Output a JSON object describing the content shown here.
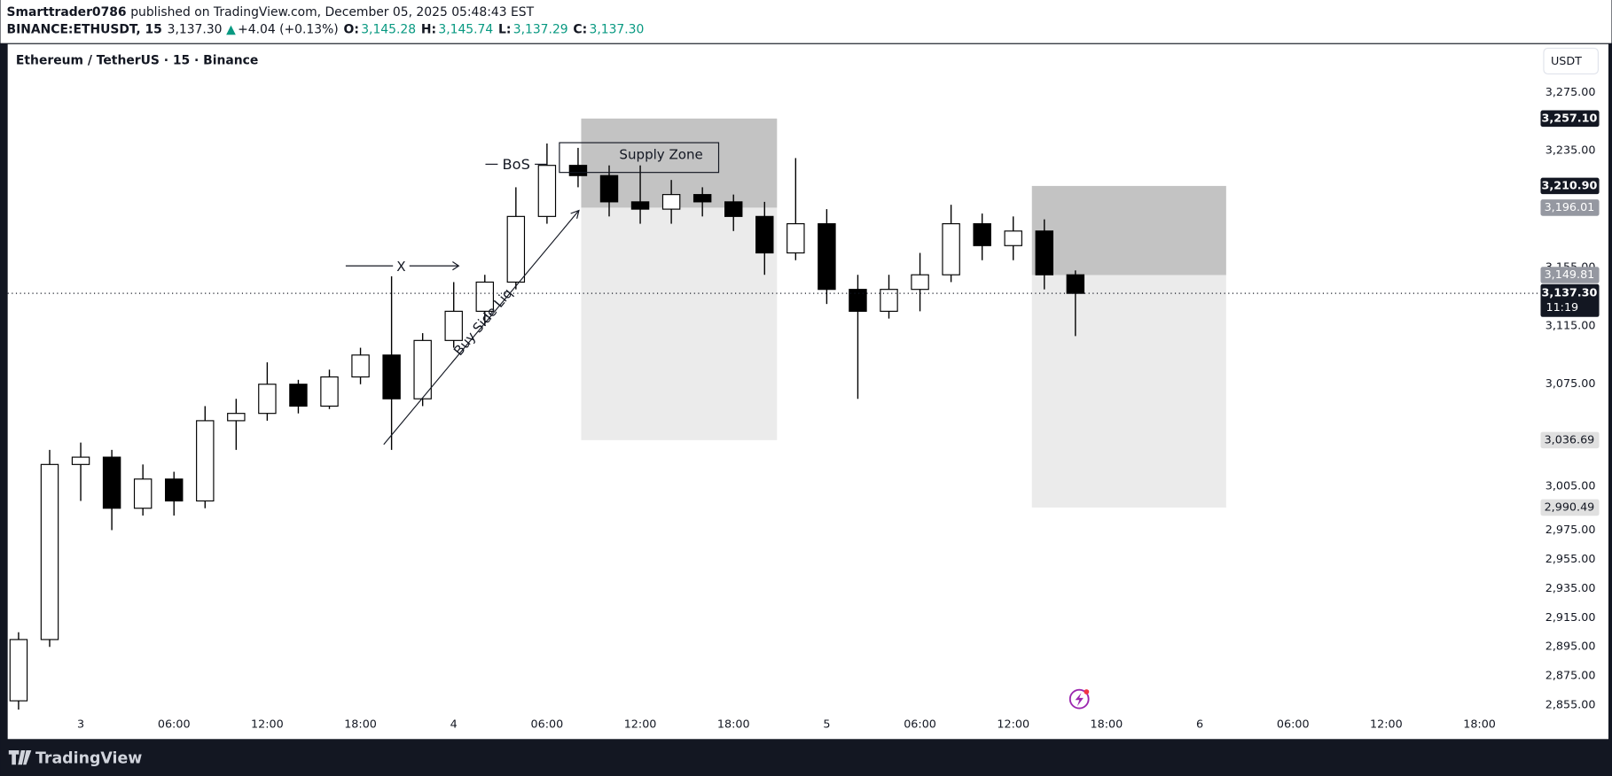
{
  "header": {
    "author": "Smarttrader0786",
    "published": "published on TradingView.com, December 05, 2025 05:48:43 EST",
    "symbol": "BINANCE:ETHUSDT, 15",
    "price": "3,137.30",
    "change": "+4.04 (+0.13%)",
    "o_label": "O:",
    "o": "3,145.28",
    "h_label": "H:",
    "h": "3,145.74",
    "l_label": "L:",
    "l": "3,137.29",
    "c_label": "C:",
    "c": "3,137.30"
  },
  "footer": {
    "brand": "TradingView"
  },
  "chart_data": {
    "type": "candlestick",
    "title": "Ethereum / TetherUS · 15 · Binance",
    "currency": "USDT",
    "up_color": "#ffffff",
    "down_color": "#000000",
    "wick_color": "#000000",
    "grid": false,
    "xlim": [
      -4.7,
      93.8
    ],
    "ylim": [
      2832.5,
      3307.4
    ],
    "xticks": [
      {
        "value": 0,
        "label": "3"
      },
      {
        "value": 6,
        "label": "06:00"
      },
      {
        "value": 12,
        "label": "12:00"
      },
      {
        "value": 18,
        "label": "18:00"
      },
      {
        "value": 24,
        "label": "4"
      },
      {
        "value": 30,
        "label": "06:00"
      },
      {
        "value": 36,
        "label": "12:00"
      },
      {
        "value": 42,
        "label": "18:00"
      },
      {
        "value": 48,
        "label": "5"
      },
      {
        "value": 54,
        "label": "06:00"
      },
      {
        "value": 60,
        "label": "12:00"
      },
      {
        "value": 66,
        "label": "18:00"
      },
      {
        "value": 72,
        "label": "6"
      },
      {
        "value": 78,
        "label": "06:00"
      },
      {
        "value": 84,
        "label": "12:00"
      },
      {
        "value": 90,
        "label": "18:00"
      }
    ],
    "yticks": [
      {
        "value": 2855,
        "label": "2,855.00"
      },
      {
        "value": 2875,
        "label": "2,875.00"
      },
      {
        "value": 2895,
        "label": "2,895.00"
      },
      {
        "value": 2915,
        "label": "2,915.00"
      },
      {
        "value": 2935,
        "label": "2,935.00"
      },
      {
        "value": 2955,
        "label": "2,955.00"
      },
      {
        "value": 2975,
        "label": "2,975.00"
      },
      {
        "value": 3005,
        "label": "3,005.00"
      },
      {
        "value": 3075,
        "label": "3,075.00"
      },
      {
        "value": 3115,
        "label": "3,115.00"
      },
      {
        "value": 3155,
        "label": "3,155.00"
      },
      {
        "value": 3235,
        "label": "3,235.00"
      },
      {
        "value": 3275,
        "label": "3,275.00"
      }
    ],
    "candles": {
      "x": [
        -4,
        -2,
        0,
        2,
        4,
        6,
        8,
        10,
        12,
        14,
        16,
        18,
        20,
        22,
        24,
        26,
        28,
        30,
        32,
        34,
        36,
        38,
        40,
        42,
        44,
        46,
        48,
        50,
        52,
        54,
        56,
        58,
        60,
        62,
        64
      ],
      "open": [
        2858,
        2900,
        3020,
        3025,
        2990,
        3010,
        2995,
        3050,
        3055,
        3075,
        3060,
        3080,
        3095,
        3065,
        3105,
        3125,
        3145,
        3190,
        3225,
        3218,
        3200,
        3195,
        3205,
        3200,
        3190,
        3165,
        3185,
        3140,
        3125,
        3140,
        3150,
        3185,
        3170,
        3180,
        3150
      ],
      "high": [
        2905,
        3030,
        3035,
        3030,
        3020,
        3015,
        3060,
        3065,
        3090,
        3078,
        3085,
        3100,
        3149,
        3110,
        3145,
        3150,
        3210,
        3240,
        3237,
        3225,
        3225,
        3215,
        3210,
        3205,
        3200,
        3230,
        3195,
        3150,
        3150,
        3165,
        3198,
        3192,
        3190,
        3188,
        3153
      ],
      "low": [
        2852,
        2895,
        2995,
        2975,
        2985,
        2985,
        2990,
        3030,
        3050,
        3055,
        3058,
        3075,
        3030,
        3060,
        3100,
        3115,
        3140,
        3185,
        3210,
        3190,
        3185,
        3185,
        3190,
        3180,
        3150,
        3160,
        3130,
        3065,
        3120,
        3125,
        3145,
        3160,
        3160,
        3140,
        3108
      ],
      "close": [
        2900,
        3020,
        3025,
        2990,
        3010,
        2995,
        3050,
        3055,
        3075,
        3060,
        3080,
        3095,
        3065,
        3105,
        3125,
        3145,
        3190,
        3225,
        3218,
        3200,
        3195,
        3205,
        3200,
        3190,
        3165,
        3185,
        3140,
        3125,
        3140,
        3150,
        3185,
        3170,
        3180,
        3150,
        3137.3
      ]
    },
    "zones": [
      {
        "x_start": 32.2,
        "x_end": 44.8,
        "top": 3257.1,
        "mid": 3196.01,
        "bottom": 3036.69
      },
      {
        "x_start": 61.2,
        "x_end": 73.7,
        "top": 3210.9,
        "mid": 3149.81,
        "bottom": 2990.49
      }
    ],
    "price_labels": [
      {
        "value": 3257.1,
        "label": "3,257.10",
        "style": "dark"
      },
      {
        "value": 3210.9,
        "label": "3,210.90",
        "style": "dark"
      },
      {
        "value": 3196.01,
        "label": "3,196.01",
        "style": "gray"
      },
      {
        "value": 3149.81,
        "label": "3,149.81",
        "style": "gray"
      },
      {
        "value": 3137.3,
        "label": "3,137.30",
        "style": "dark"
      },
      {
        "value": 3036.69,
        "label": "3,036.69",
        "style": "light"
      },
      {
        "value": 2990.49,
        "label": "2,990.49",
        "style": "light"
      }
    ],
    "countdown": "11:19",
    "annotations": {
      "bos": "BoS",
      "x": "X",
      "liquidity": "Buy Side Liq",
      "supply": "Supply Zone"
    }
  }
}
